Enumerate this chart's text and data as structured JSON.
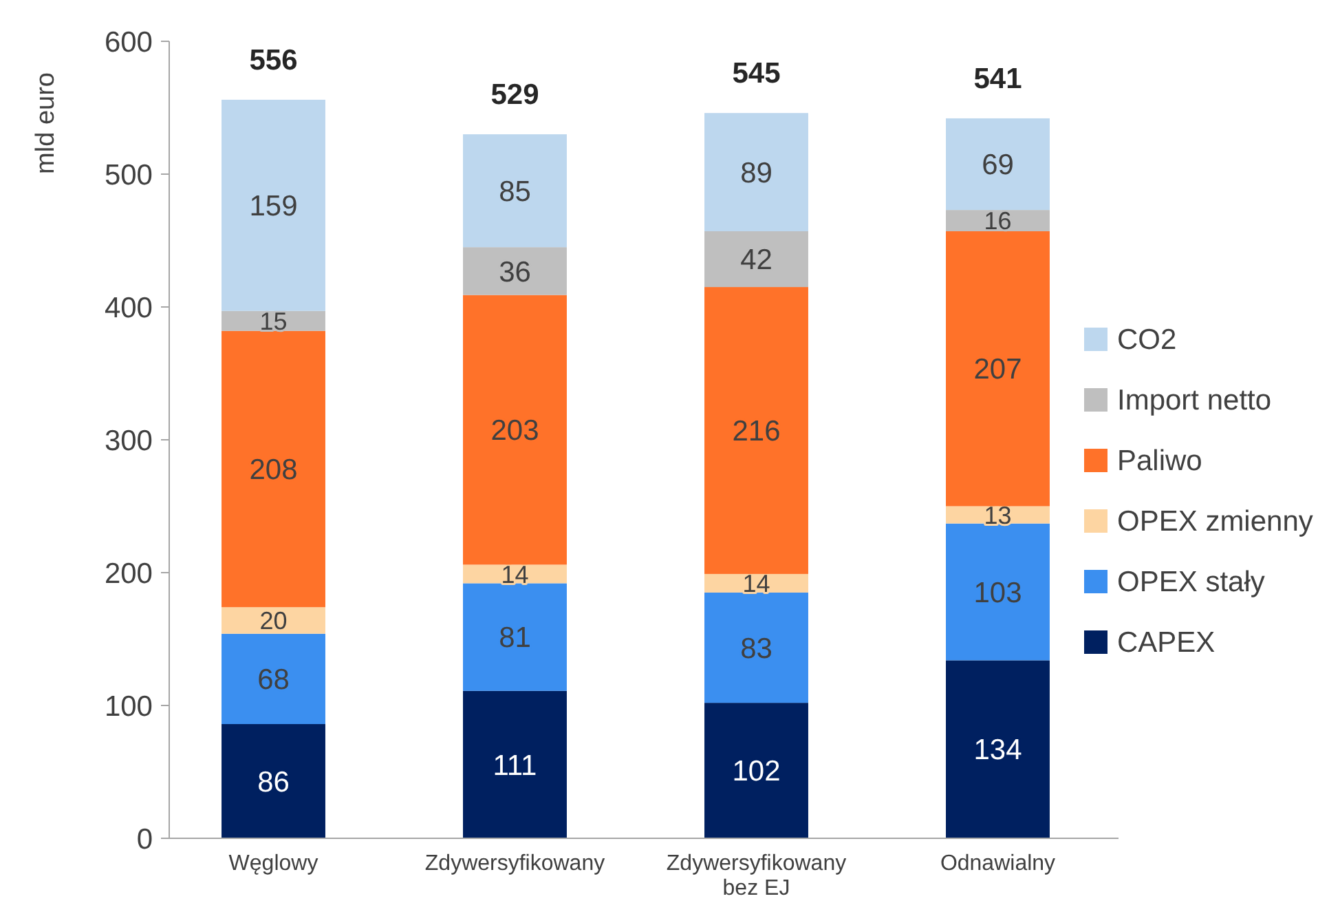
{
  "chart_data": {
    "type": "bar",
    "stacked": true,
    "ylabel": "mld euro",
    "categories": [
      "Węglowy",
      "Zdywersyfikowany",
      "Zdywersyfikowany bez EJ",
      "Odnawialny"
    ],
    "series": [
      {
        "name": "CAPEX",
        "color": "#002060",
        "values": [
          86,
          111,
          102,
          134
        ]
      },
      {
        "name": "OPEX stały",
        "color": "#3b8ff0",
        "values": [
          68,
          81,
          83,
          103
        ]
      },
      {
        "name": "OPEX zmienny",
        "color": "#fdd5a2",
        "values": [
          20,
          14,
          14,
          13
        ]
      },
      {
        "name": "Paliwo",
        "color": "#ff7229",
        "values": [
          208,
          203,
          216,
          207
        ]
      },
      {
        "name": "Import netto",
        "color": "#bfbfbf",
        "values": [
          15,
          36,
          42,
          16
        ]
      },
      {
        "name": "CO2",
        "color": "#bdd7ee",
        "values": [
          159,
          85,
          89,
          69
        ]
      }
    ],
    "totals": [
      "556",
      "529",
      "545",
      "541"
    ],
    "ylim": [
      0,
      600
    ],
    "yticks": [
      0,
      100,
      200,
      300,
      400,
      500,
      600
    ],
    "data_labels": true,
    "legend": "right",
    "grid": false
  }
}
